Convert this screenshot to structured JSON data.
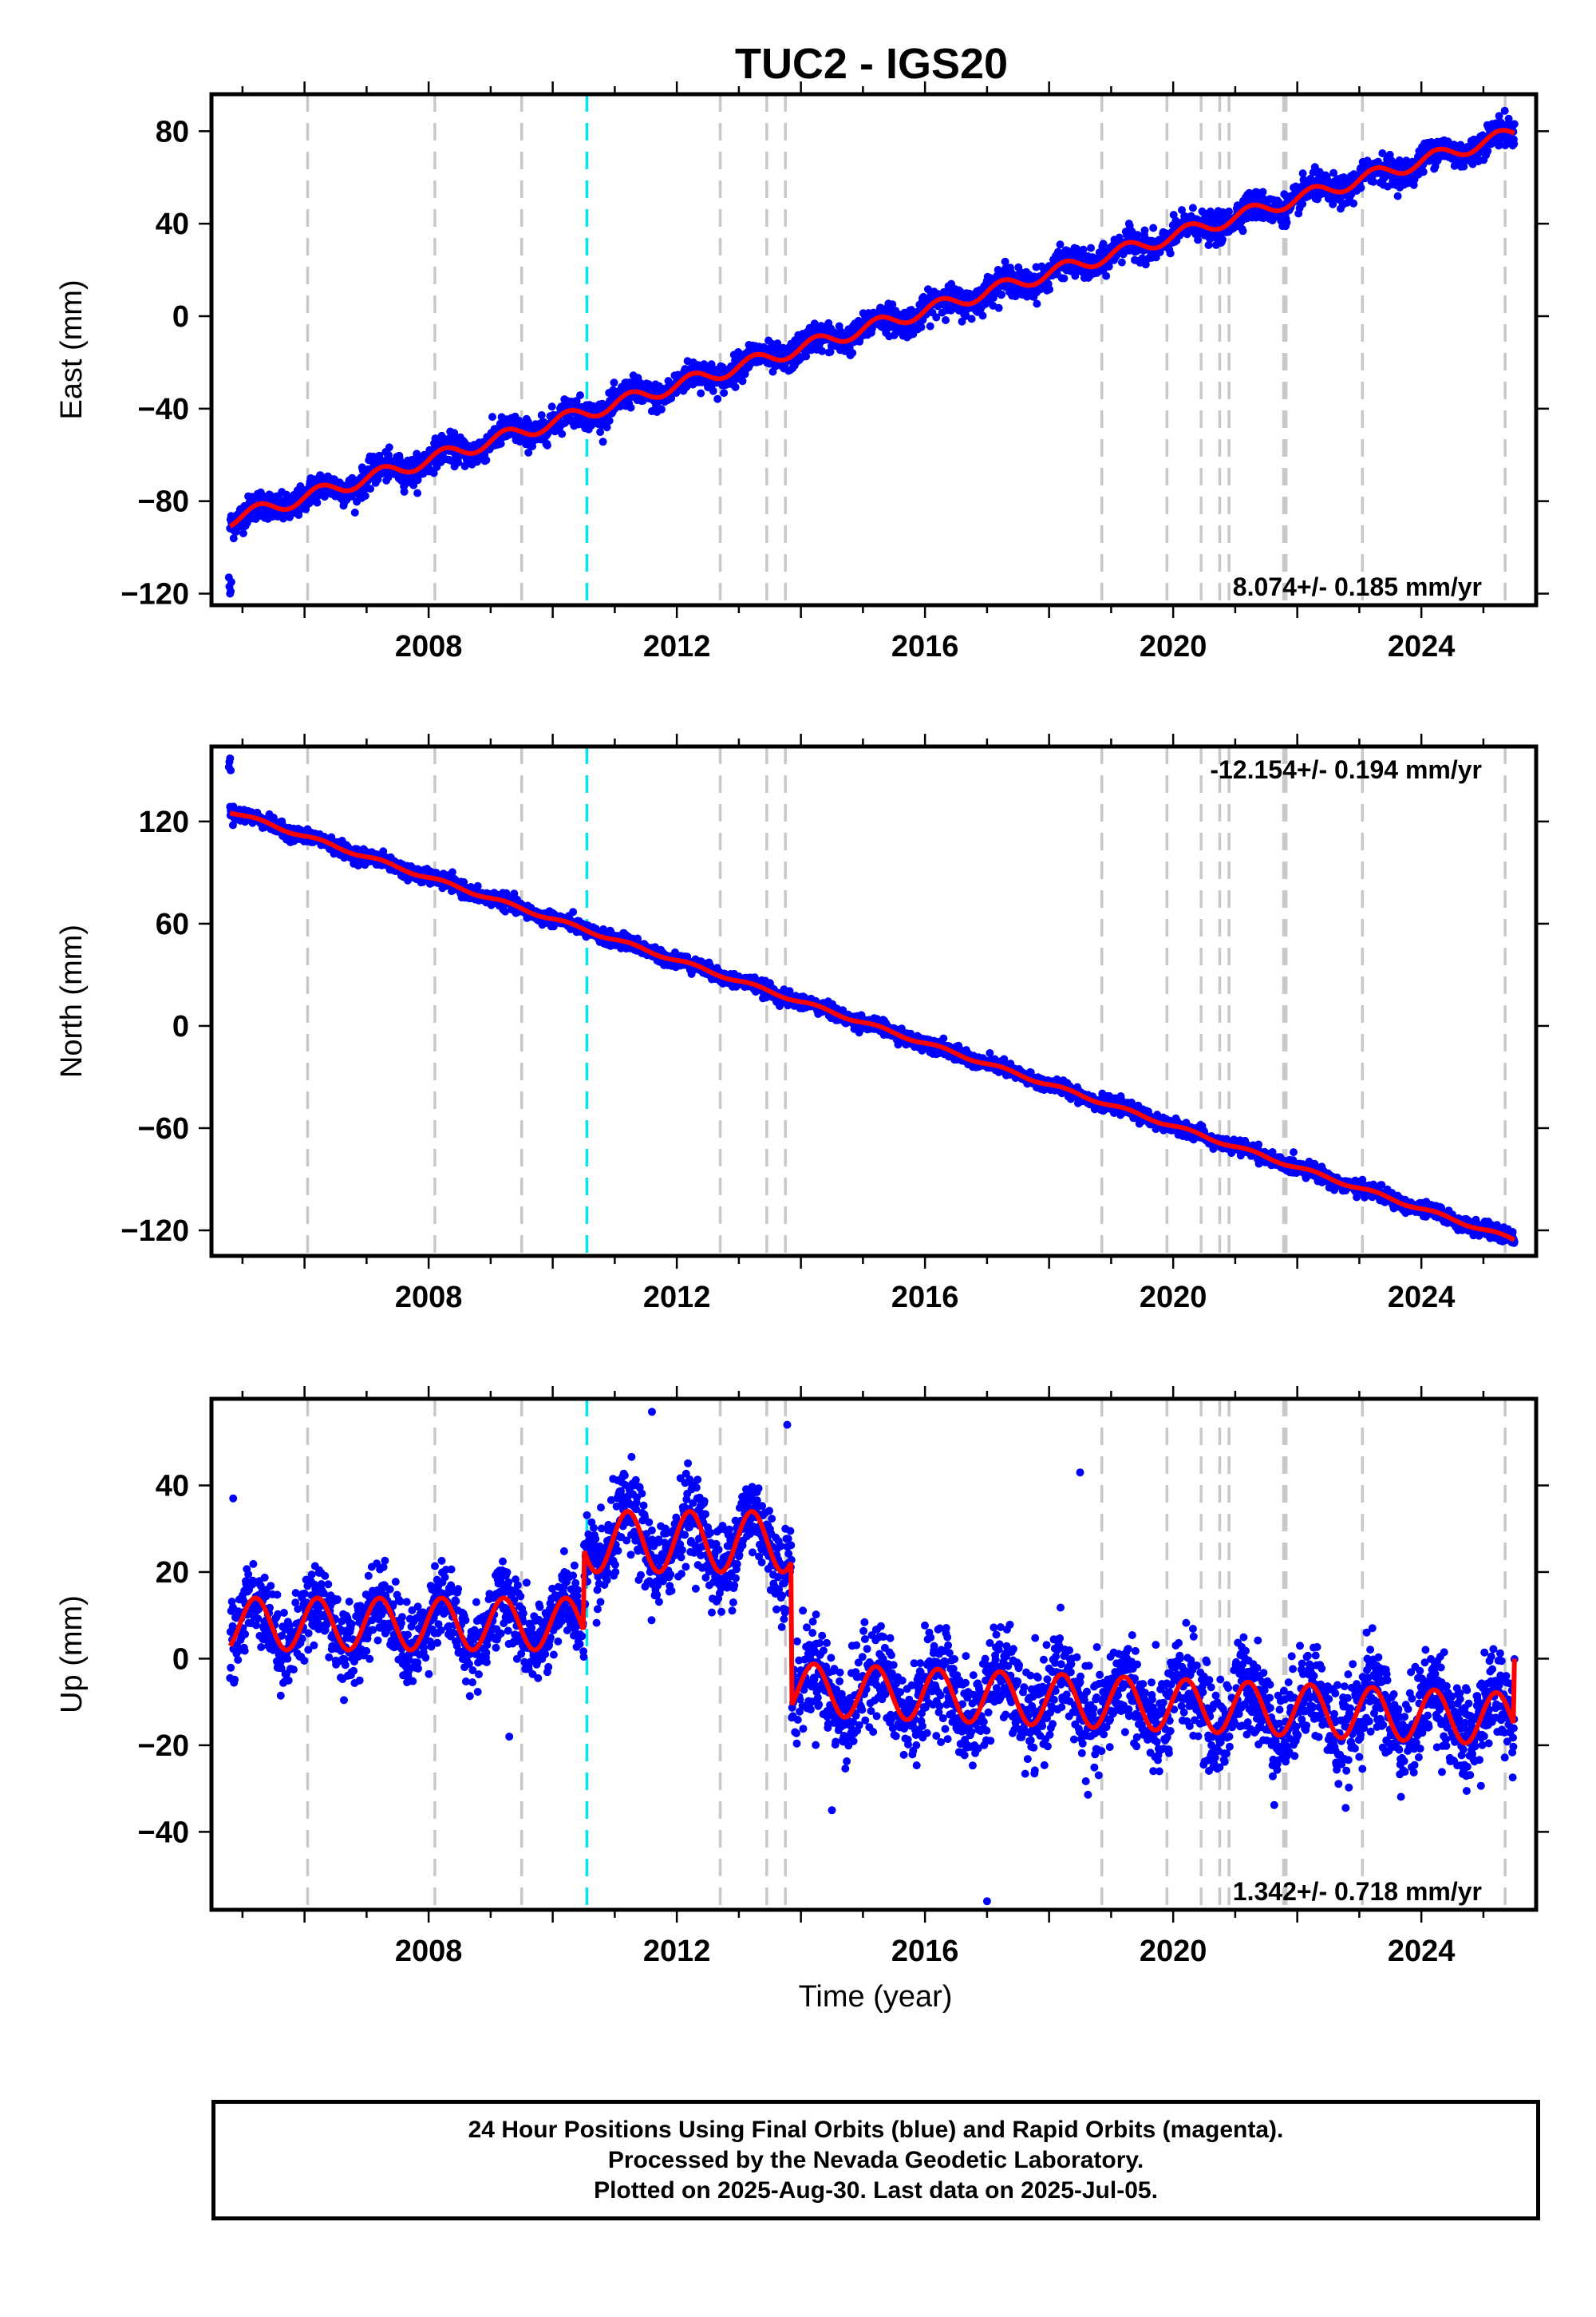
{
  "title": "TUC2 - IGS20",
  "xlabel": "Time (year)",
  "colors": {
    "data": "#0000ff",
    "model": "#ff0000",
    "event": "#c8c8c8",
    "equipment": "#00e5ee"
  },
  "footer": {
    "line1": "24 Hour Positions Using Final Orbits (blue) and Rapid Orbits (magenta).",
    "line2": "Processed by the Nevada Geodetic Laboratory.",
    "line3": "Plotted on 2025-Aug-30. Last data on 2025-Jul-05."
  },
  "chart_data": [
    {
      "type": "scatter",
      "component": "east",
      "ylabel": "East (mm)",
      "rate_label": "8.074+/- 0.185 mm/yr",
      "xlim": [
        2004.5,
        2025.85
      ],
      "ylim": [
        -125,
        96
      ],
      "xticks": [
        2008,
        2012,
        2016,
        2020,
        2024
      ],
      "yticks": [
        -120,
        -80,
        -40,
        0,
        40,
        80
      ],
      "start_value": -88,
      "rate": 8.074,
      "seasonal_amplitude": 3,
      "noise": 3,
      "offsets": [],
      "outliers": [
        [
          2004.78,
          -113
        ],
        [
          2004.79,
          -117
        ],
        [
          2004.8,
          -120
        ],
        [
          2004.81,
          -119
        ],
        [
          2004.82,
          -115
        ]
      ],
      "grid": false,
      "legend": "none"
    },
    {
      "type": "scatter",
      "component": "north",
      "ylabel": "North (mm)",
      "rate_label": "-12.154+/- 0.194 mm/yr",
      "xlim": [
        2004.5,
        2025.85
      ],
      "ylim": [
        -135,
        164
      ],
      "xticks": [
        2008,
        2012,
        2016,
        2020,
        2024
      ],
      "yticks": [
        -120,
        -60,
        0,
        60,
        120
      ],
      "start_value": 126,
      "rate": -12.154,
      "seasonal_amplitude": 1,
      "noise": 2,
      "offsets": [],
      "outliers": [
        [
          2004.78,
          152
        ],
        [
          2004.79,
          155
        ],
        [
          2004.8,
          157
        ],
        [
          2004.81,
          150
        ]
      ],
      "grid": false,
      "legend": "none"
    },
    {
      "type": "scatter",
      "component": "up",
      "ylabel": "Up (mm)",
      "rate_label": "1.342+/- 0.718 mm/yr",
      "xlim": [
        2004.5,
        2025.85
      ],
      "ylim": [
        -58,
        60
      ],
      "xticks": [
        2008,
        2012,
        2016,
        2020,
        2024
      ],
      "yticks": [
        -40,
        -20,
        0,
        20,
        40
      ],
      "segments": [
        {
          "from": 2004.8,
          "to": 2010.5,
          "mean": 8,
          "amp": 6,
          "noise": 4.5
        },
        {
          "from": 2010.5,
          "to": 2013.85,
          "mean": 27,
          "amp": 7,
          "noise": 5
        },
        {
          "from": 2013.85,
          "to": 2025.5,
          "mean": -7,
          "amp": 6,
          "noise": 5.5,
          "drift": -0.6
        }
      ],
      "outliers": [
        [
          2004.85,
          37
        ],
        [
          2009.3,
          -18
        ],
        [
          2011.6,
          57
        ],
        [
          2013.78,
          54
        ],
        [
          2014.5,
          -35
        ],
        [
          2017.0,
          -56
        ],
        [
          2018.5,
          43
        ]
      ],
      "grid": false,
      "legend": "none"
    }
  ],
  "event_lines": [
    2006.05,
    2008.1,
    2009.5,
    2012.7,
    2013.45,
    2013.75,
    2018.85,
    2019.9,
    2020.45,
    2020.75,
    2020.9,
    2021.78,
    2021.82,
    2023.05,
    2025.35
  ],
  "equipment_lines": [
    2010.55
  ]
}
